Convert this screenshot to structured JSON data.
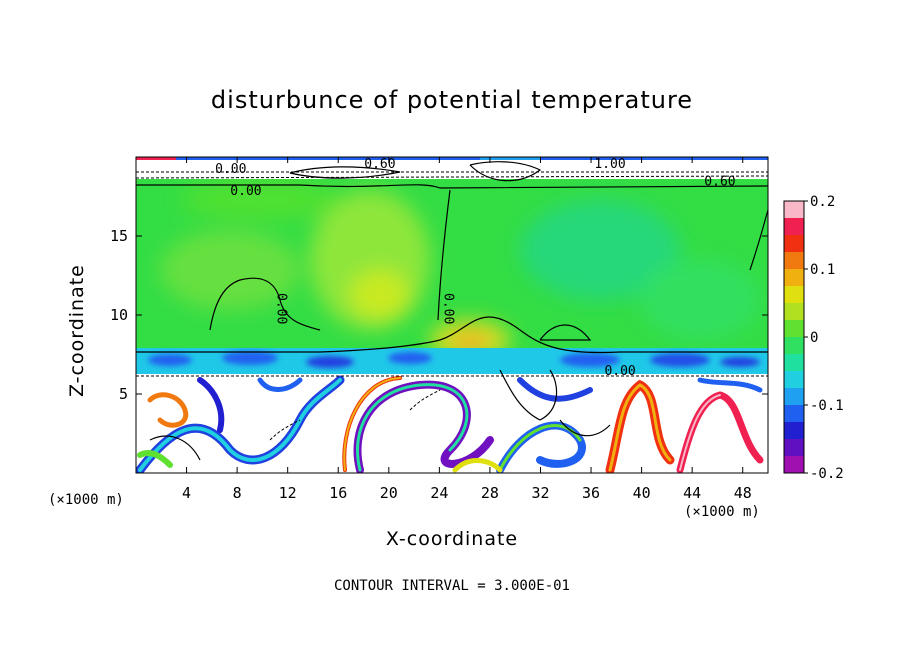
{
  "chart_data": {
    "type": "heatmap",
    "title": "disturbunce of potential temperature",
    "xlabel": "X-coordinate",
    "ylabel": "Z-coordinate",
    "x_unit": "(×1000 m)",
    "y_unit": "(×1000 m)",
    "xlim": [
      0,
      50
    ],
    "ylim": [
      0,
      20
    ],
    "x_ticks": [
      4,
      8,
      12,
      16,
      20,
      24,
      28,
      32,
      36,
      40,
      44,
      48
    ],
    "y_ticks": [
      5,
      10,
      15
    ],
    "colorbar": {
      "range": [
        -0.2,
        0.2
      ],
      "tick_labels": [
        "0.2",
        "0.1",
        "0",
        "-0.1",
        "-0.2"
      ],
      "tick_values": [
        0.2,
        0.1,
        0,
        -0.1,
        -0.2
      ],
      "colors": [
        "#f8b8c8",
        "#f02050",
        "#f03010",
        "#f07a10",
        "#f0b010",
        "#e0e010",
        "#b0e020",
        "#60e030",
        "#30e060",
        "#20e0a0",
        "#20d0e0",
        "#20a0f0",
        "#2060f0",
        "#2020d0",
        "#6010c0",
        "#a010b0"
      ]
    },
    "contour_labels": [
      "0.00",
      "0.00",
      "0.00",
      "0.00",
      "0.60",
      "1.00",
      "0.60",
      "0.00"
    ],
    "contour_interval": "CONTOUR INTERVAL = 3.000E-01"
  }
}
